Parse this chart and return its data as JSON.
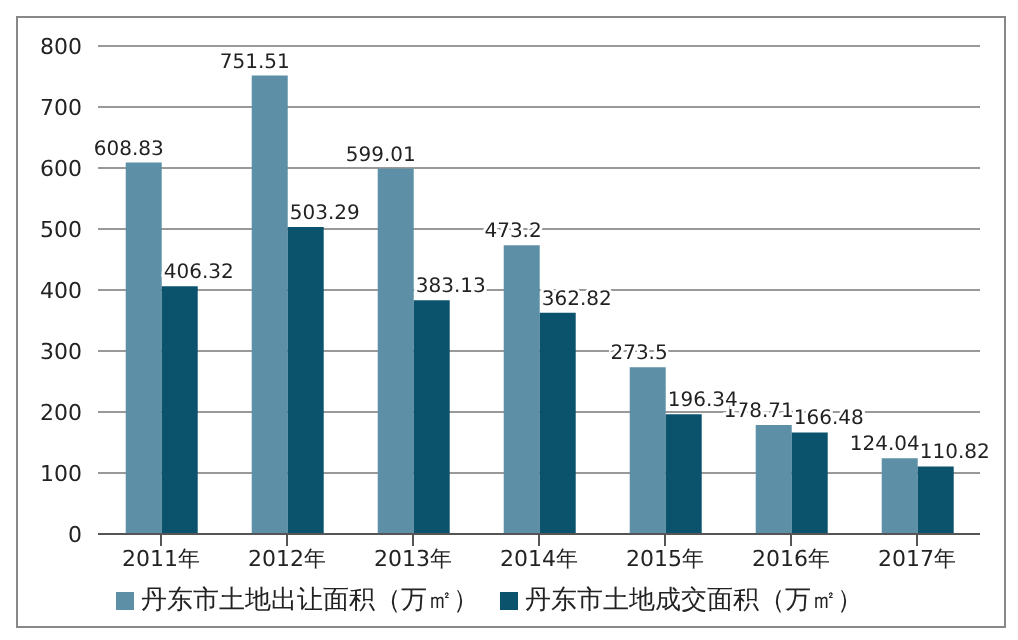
{
  "chart_data": {
    "type": "bar",
    "categories": [
      "2011年",
      "2012年",
      "2013年",
      "2014年",
      "2015年",
      "2016年",
      "2017年"
    ],
    "series": [
      {
        "name": "丹东市土地出让面积（万㎡）",
        "color": "#5d8fa6",
        "values": [
          608.83,
          751.51,
          599.01,
          473.2,
          273.5,
          178.71,
          124.04
        ]
      },
      {
        "name": "丹东市土地成交面积（万㎡）",
        "color": "#0b536c",
        "values": [
          406.32,
          503.29,
          383.13,
          362.82,
          196.34,
          166.48,
          110.82
        ]
      }
    ],
    "ylim": [
      0,
      800
    ],
    "yticks": [
      0,
      100,
      200,
      300,
      400,
      500,
      600,
      700,
      800
    ],
    "grid": "y",
    "legend": "bottom",
    "data_labels": true
  }
}
